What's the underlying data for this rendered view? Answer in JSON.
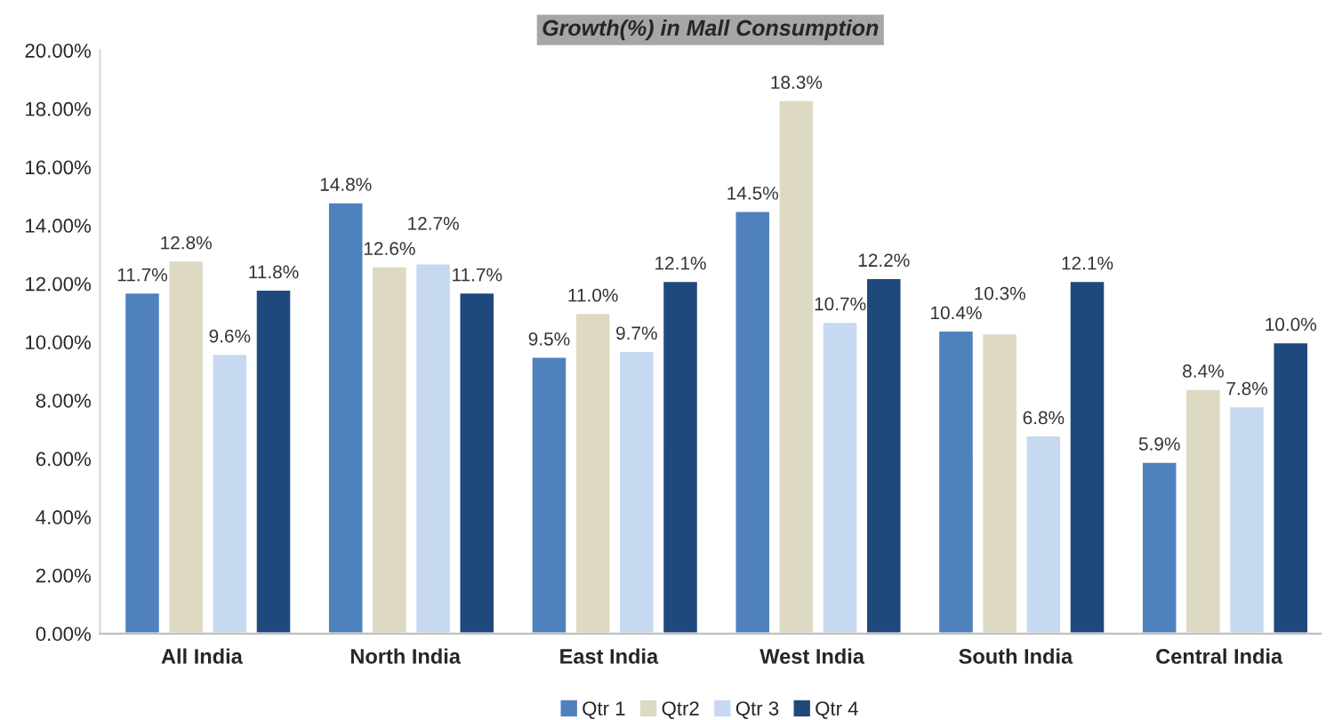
{
  "chart_data": {
    "type": "bar",
    "title": "Growth(%) in Mall Consumption",
    "categories": [
      "All India",
      "North India",
      "East India",
      "West India",
      "South India",
      "Central India"
    ],
    "series": [
      {
        "name": "Qtr 1",
        "color": "#4f81bd",
        "values": [
          11.7,
          14.8,
          9.5,
          14.5,
          10.4,
          5.9
        ],
        "value_labels": [
          "11.7%",
          "14.8%",
          "9.5%",
          "14.5%",
          "10.4%",
          "5.9%"
        ]
      },
      {
        "name": "Qtr2",
        "color": "#ddd9c3",
        "values": [
          12.8,
          12.6,
          11.0,
          18.3,
          10.3,
          8.4
        ],
        "value_labels": [
          "12.8%",
          "12.6%",
          "11.0%",
          "18.3%",
          "10.3%",
          "8.4%"
        ]
      },
      {
        "name": "Qtr 3",
        "color": "#c6d9f1",
        "values": [
          9.6,
          12.7,
          9.7,
          10.7,
          6.8,
          7.8
        ],
        "value_labels": [
          "9.6%",
          "12.7%",
          "9.7%",
          "10.7%",
          "6.8%",
          "7.8%"
        ]
      },
      {
        "name": "Qtr 4",
        "color": "#1f497d",
        "values": [
          11.8,
          11.7,
          12.1,
          12.2,
          12.1,
          10.0
        ],
        "value_labels": [
          "11.8%",
          "11.7%",
          "12.1%",
          "12.2%",
          "12.1%",
          "10.0%"
        ]
      }
    ],
    "ylim": [
      0,
      20
    ],
    "yticks": [
      {
        "value": 0,
        "label": "0.00%"
      },
      {
        "value": 2,
        "label": "2.00%"
      },
      {
        "value": 4,
        "label": "4.00%"
      },
      {
        "value": 6,
        "label": "6.00%"
      },
      {
        "value": 8,
        "label": "8.00%"
      },
      {
        "value": 10,
        "label": "10.00%"
      },
      {
        "value": 12,
        "label": "12.00%"
      },
      {
        "value": 14,
        "label": "14.00%"
      },
      {
        "value": 16,
        "label": "16.00%"
      },
      {
        "value": 18,
        "label": "18.00%"
      },
      {
        "value": 20,
        "label": "20.00%"
      }
    ],
    "grid": false,
    "legend": "bottom"
  }
}
